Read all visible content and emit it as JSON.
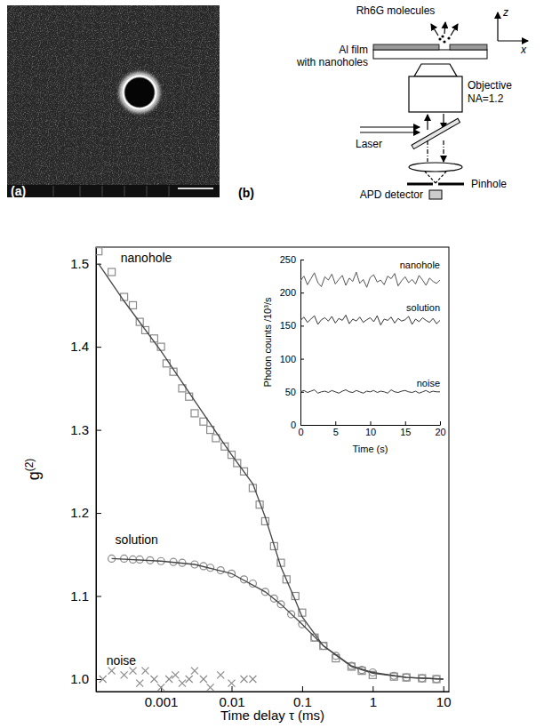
{
  "image_a": {
    "label": "(a)"
  },
  "schematic_b": {
    "label": "(b)",
    "molecules": "Rh6G molecules",
    "axes": [
      "z",
      "x"
    ],
    "film": [
      "Al film",
      "with nanoholes"
    ],
    "objective": [
      "Objective",
      "NA=1.2"
    ],
    "laser": "Laser",
    "pinhole": "Pinhole",
    "detector": "APD detector"
  },
  "chart_data": [
    {
      "type": "scatter",
      "x_label": "Time delay τ (ms)",
      "y_label": "g(2)",
      "log": "x",
      "xlim": [
        0.00012,
        12
      ],
      "xticks": [
        0.001,
        0.01,
        0.1,
        1,
        10
      ],
      "ylim": [
        0.985,
        1.52
      ],
      "yticks": [
        {
          "value": 1,
          "label": "1.0"
        },
        1.1,
        1.2,
        1.3,
        1.4,
        1.5
      ],
      "series": [
        {
          "name": "nanohole",
          "color": "#8a8a8a",
          "marker": "square",
          "x": [
            0.00013,
            0.0002,
            0.0003,
            0.0004,
            0.0005,
            0.0006,
            0.0008,
            0.001,
            0.0012,
            0.0015,
            0.002,
            0.0025,
            0.003,
            0.004,
            0.005,
            0.006,
            0.008,
            0.01,
            0.012,
            0.015,
            0.02,
            0.025,
            0.03,
            0.04,
            0.05,
            0.06,
            0.08,
            0.1,
            0.15,
            0.2,
            0.3,
            0.5,
            0.7,
            1,
            2,
            3,
            5,
            8
          ],
          "values": [
            1.515,
            1.49,
            1.46,
            1.45,
            1.43,
            1.42,
            1.41,
            1.4,
            1.38,
            1.37,
            1.35,
            1.34,
            1.32,
            1.31,
            1.3,
            1.29,
            1.28,
            1.27,
            1.26,
            1.25,
            1.23,
            1.21,
            1.19,
            1.16,
            1.14,
            1.12,
            1.1,
            1.08,
            1.05,
            1.04,
            1.025,
            1.015,
            1.01,
            1.005,
            1.003,
            1.002,
            1.001,
            1.0
          ]
        },
        {
          "type": "line",
          "color": "#444444",
          "line_style": "solid",
          "x": [
            0.00013,
            0.0003,
            0.001,
            0.003,
            0.01,
            0.02,
            0.03,
            0.05,
            0.08,
            0.1,
            0.2,
            0.5,
            1,
            3,
            10
          ],
          "values": [
            1.5,
            1.455,
            1.395,
            1.335,
            1.27,
            1.235,
            1.195,
            1.135,
            1.095,
            1.075,
            1.04,
            1.015,
            1.007,
            1.002,
            1.0
          ]
        },
        {
          "name": "solution",
          "color": "#8a8a8a",
          "marker": "circle",
          "x": [
            0.0002,
            0.0003,
            0.0004,
            0.0005,
            0.0007,
            0.001,
            0.0015,
            0.002,
            0.003,
            0.004,
            0.005,
            0.007,
            0.01,
            0.015,
            0.02,
            0.03,
            0.04,
            0.05,
            0.07,
            0.1,
            0.15,
            0.2,
            0.3,
            0.5,
            0.7,
            1,
            2,
            3,
            5,
            8
          ],
          "values": [
            1.145,
            1.145,
            1.144,
            1.144,
            1.143,
            1.142,
            1.141,
            1.14,
            1.138,
            1.136,
            1.134,
            1.131,
            1.127,
            1.12,
            1.115,
            1.105,
            1.097,
            1.09,
            1.078,
            1.066,
            1.05,
            1.04,
            1.028,
            1.016,
            1.011,
            1.008,
            1.004,
            1.002,
            1.001,
            1.0
          ]
        },
        {
          "type": "line",
          "color": "#444444",
          "line_style": "solid",
          "x": [
            0.0002,
            0.001,
            0.003,
            0.01,
            0.03,
            0.05,
            0.1,
            0.2,
            0.5,
            1,
            3,
            10
          ],
          "values": [
            1.145,
            1.142,
            1.138,
            1.127,
            1.105,
            1.09,
            1.066,
            1.04,
            1.016,
            1.008,
            1.002,
            1.0
          ]
        },
        {
          "name": "noise",
          "color": "#8a8a8a",
          "marker": "x",
          "x": [
            0.00015,
            0.0002,
            0.0003,
            0.0004,
            0.0005,
            0.0006,
            0.0008,
            0.001,
            0.0013,
            0.0016,
            0.002,
            0.0025,
            0.003,
            0.004,
            0.005,
            0.007,
            0.01,
            0.015,
            0.02
          ],
          "values": [
            1.0,
            1.01,
            1.005,
            1.01,
            0.995,
            1.01,
            1.0,
            0.99,
            1.0,
            1.005,
            0.995,
            1.0,
            1.01,
            1.0,
            0.99,
            1.005,
            0.995,
            1.0,
            1.0
          ]
        }
      ]
    },
    {
      "type": "line",
      "x_label": "Time (s)",
      "y_label": "Photon counts /10³/s",
      "xlim": [
        0,
        20
      ],
      "xticks": [
        0,
        5,
        10,
        15,
        20
      ],
      "ylim": [
        0,
        250
      ],
      "yticks": [
        0,
        50,
        100,
        150,
        200,
        250
      ],
      "x": [
        0,
        0.5,
        1,
        1.5,
        2,
        2.5,
        3,
        3.5,
        4,
        4.5,
        5,
        5.5,
        6,
        6.5,
        7,
        7.5,
        8,
        8.5,
        9,
        9.5,
        10,
        10.5,
        11,
        11.5,
        12,
        12.5,
        13,
        13.5,
        14,
        14.5,
        15,
        15.5,
        16,
        16.5,
        17,
        17.5,
        18,
        18.5,
        19,
        19.5,
        20
      ],
      "series": [
        {
          "name": "nanohole",
          "color": "#555555",
          "values": [
            218,
            225,
            212,
            221,
            230,
            215,
            209,
            224,
            219,
            228,
            213,
            220,
            226,
            211,
            222,
            217,
            231,
            214,
            220,
            208,
            223,
            227,
            216,
            219,
            212,
            225,
            221,
            229,
            210,
            218,
            224,
            215,
            220,
            213,
            226,
            219,
            211,
            222,
            217,
            214,
            219
          ]
        },
        {
          "name": "solution",
          "color": "#333333",
          "values": [
            158,
            163,
            155,
            160,
            165,
            152,
            159,
            162,
            157,
            164,
            154,
            161,
            158,
            166,
            153,
            160,
            157,
            163,
            155,
            159,
            162,
            156,
            165,
            151,
            160,
            158,
            163,
            154,
            161,
            157,
            159,
            164,
            152,
            160,
            156,
            162,
            158,
            155,
            161,
            153,
            158
          ]
        },
        {
          "name": "noise",
          "color": "#333333",
          "values": [
            50,
            52,
            49,
            51,
            53,
            48,
            50,
            51,
            49,
            52,
            50,
            48,
            51,
            53,
            50,
            49,
            52,
            50,
            48,
            51,
            50,
            52,
            49,
            51,
            50,
            48,
            53,
            50,
            49,
            51,
            52,
            50,
            49,
            51,
            48,
            50,
            52,
            49,
            51,
            50,
            50
          ]
        }
      ]
    }
  ]
}
